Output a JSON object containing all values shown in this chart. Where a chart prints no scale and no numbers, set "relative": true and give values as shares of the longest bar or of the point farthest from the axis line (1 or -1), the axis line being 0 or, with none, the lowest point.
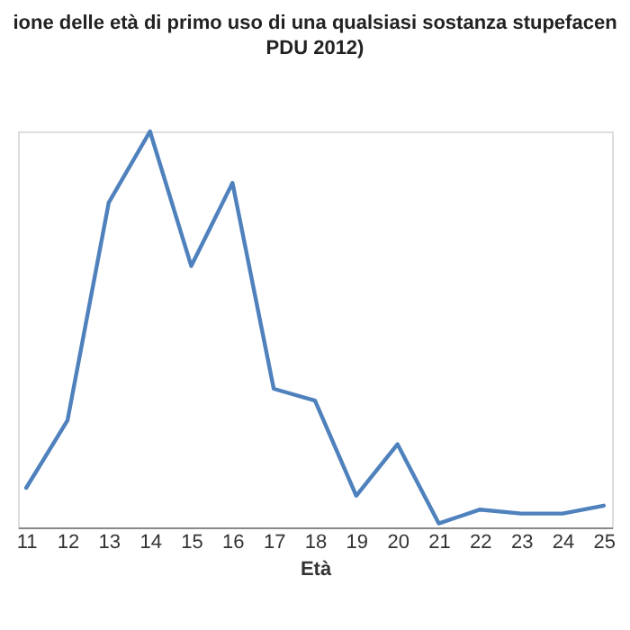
{
  "chart_data": {
    "type": "line",
    "title": "ione delle  età di primo  uso di una qualsiasi sostanza stupefacen",
    "subtitle": "PDU 2012)",
    "xlabel": "Età",
    "relative": true,
    "categories": [
      "11",
      "12",
      "13",
      "14",
      "15",
      "16",
      "17",
      "18",
      "19",
      "20",
      "21",
      "22",
      "23",
      "24",
      "25"
    ],
    "series": [
      {
        "color": "#4f81bd",
        "values": [
          0.1,
          0.27,
          0.82,
          1,
          0.66,
          0.87,
          0.35,
          0.32,
          0.08,
          0.21,
          0.01,
          0.045,
          0.035,
          0.035,
          0.055
        ]
      }
    ],
    "grid": false,
    "legend": false,
    "marker": "none",
    "line_style": "solid"
  }
}
